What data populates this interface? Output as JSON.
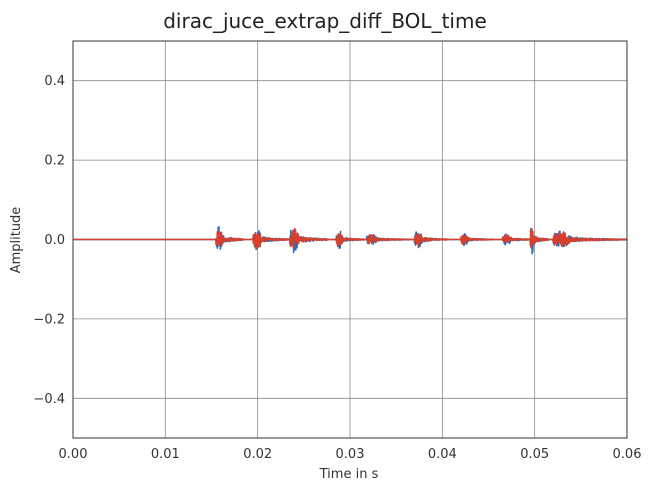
{
  "chart_data": {
    "type": "line",
    "title": "dirac_juce_extrap_diff_BOL_time",
    "xlabel": "Time in s",
    "ylabel": "Amplitude",
    "xlim": [
      0.0,
      0.06
    ],
    "ylim": [
      -0.5,
      0.5
    ],
    "xticks": [
      0.0,
      0.01,
      0.02,
      0.03,
      0.04,
      0.05,
      0.06
    ],
    "xtick_labels": [
      "0.00",
      "0.01",
      "0.02",
      "0.03",
      "0.04",
      "0.05",
      "0.06"
    ],
    "yticks": [
      -0.4,
      -0.2,
      0.0,
      0.2,
      0.4
    ],
    "ytick_labels": [
      "−0.4",
      "−0.2",
      "0.0",
      "0.2",
      "0.4"
    ],
    "grid": true,
    "legend": "none",
    "bursts": [
      {
        "start": 0.0155,
        "end": 0.0185,
        "peak": 0.045
      },
      {
        "start": 0.0195,
        "end": 0.0235,
        "peak": 0.035
      },
      {
        "start": 0.0235,
        "end": 0.0275,
        "peak": 0.045
      },
      {
        "start": 0.0285,
        "end": 0.0315,
        "peak": 0.03
      },
      {
        "start": 0.0318,
        "end": 0.0365,
        "peak": 0.02
      },
      {
        "start": 0.037,
        "end": 0.0405,
        "peak": 0.03
      },
      {
        "start": 0.042,
        "end": 0.0455,
        "peak": 0.02
      },
      {
        "start": 0.0465,
        "end": 0.0505,
        "peak": 0.02
      },
      {
        "start": 0.0495,
        "end": 0.0515,
        "peak": 0.045
      },
      {
        "start": 0.052,
        "end": 0.06,
        "peak": 0.03
      }
    ],
    "series": [
      {
        "color": "#1f6fc0",
        "scale": 1.0,
        "seed": 7
      },
      {
        "color": "#d9402b",
        "scale": 0.85,
        "seed": 19
      }
    ]
  }
}
